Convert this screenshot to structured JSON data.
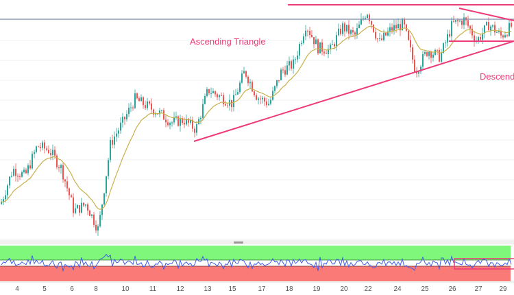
{
  "chart_data": {
    "type": "candlestick",
    "title": "",
    "x_tick_labels": [
      "4",
      "5",
      "6",
      "8",
      "10",
      "11",
      "12",
      "13",
      "15",
      "17",
      "18",
      "19",
      "20",
      "22",
      "24",
      "25",
      "26",
      "27",
      "29"
    ],
    "price_path_relative": [
      14,
      29,
      26,
      39,
      37,
      29,
      11,
      14,
      3,
      40,
      49,
      59,
      56,
      53,
      49,
      50,
      46,
      63,
      60,
      57,
      71,
      60,
      57,
      71,
      74,
      91,
      81,
      80,
      90,
      86,
      97,
      83,
      89,
      91,
      71,
      80,
      77,
      91,
      93,
      84,
      91,
      86,
      91
    ],
    "moving_average": {
      "color": "#c8b04a"
    },
    "candle_colors": {
      "up": "#26a69a",
      "down": "#ef5350"
    },
    "annotations": [
      {
        "text": "Ascending Triangle",
        "color": "#ee3a78"
      },
      {
        "text": "Descending",
        "color": "#ee3a78"
      }
    ],
    "drawing_color": "#ee3a78",
    "resistance_line_color": "#7a86a8",
    "grid": true,
    "oscillator": {
      "line_color": "#3f5be8",
      "overbought_zone_color": "#7ff77a",
      "oversold_zone_color": "#fa7a78"
    }
  }
}
